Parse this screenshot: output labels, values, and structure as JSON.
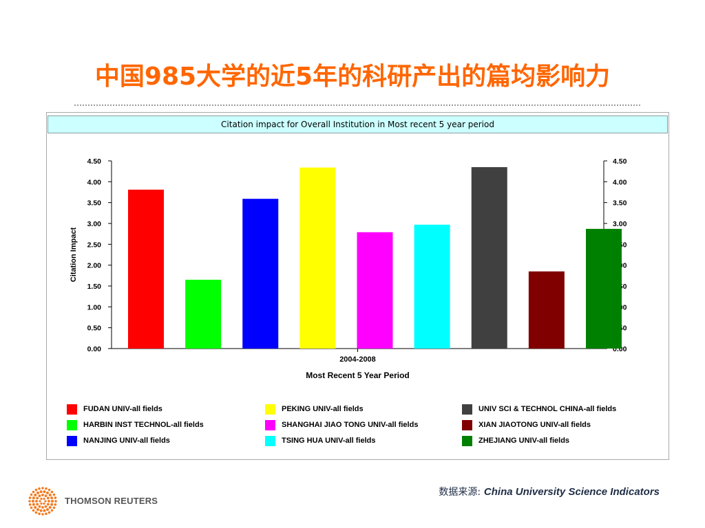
{
  "title": "中国985大学的近5年的科研产出的篇均影响力",
  "chart_header": "Citation impact for Overall Institution in Most recent 5 year period",
  "source": {
    "label": "数据来源:",
    "text": "China University Science Indicators"
  },
  "brand": {
    "name": "THOMSON REUTERS",
    "logo_color": "#f47b20"
  },
  "chart_data": {
    "type": "bar",
    "title": "Citation impact for Overall Institution in Most recent 5 year period",
    "xlabel": "Most Recent 5 Year Period",
    "category_label": "2004-2008",
    "ylabel": "Citation Impact",
    "ylim": [
      0,
      4.5
    ],
    "yticks": [
      "0.00",
      "0.50",
      "1.00",
      "1.50",
      "2.00",
      "2.50",
      "3.00",
      "3.50",
      "4.00",
      "4.50"
    ],
    "grid": false,
    "legend_position": "bottom",
    "series": [
      {
        "name": "FUDAN UNIV-all fields",
        "value": 3.81,
        "color": "#ff0000"
      },
      {
        "name": "HARBIN INST TECHNOL-all fields",
        "value": 1.65,
        "color": "#00ff00"
      },
      {
        "name": "NANJING UNIV-all fields",
        "value": 3.59,
        "color": "#0000ff"
      },
      {
        "name": "PEKING UNIV-all fields",
        "value": 4.34,
        "color": "#ffff00"
      },
      {
        "name": "SHANGHAI JIAO TONG UNIV-all fields",
        "value": 2.79,
        "color": "#ff00ff"
      },
      {
        "name": "TSING HUA UNIV-all fields",
        "value": 2.97,
        "color": "#00ffff"
      },
      {
        "name": "UNIV SCI & TECHNOL CHINA-all fields",
        "value": 4.35,
        "color": "#404040"
      },
      {
        "name": "XIAN JIAOTONG UNIV-all fields",
        "value": 1.85,
        "color": "#800000"
      },
      {
        "name": "ZHEJIANG UNIV-all fields",
        "value": 2.87,
        "color": "#008000"
      }
    ]
  }
}
